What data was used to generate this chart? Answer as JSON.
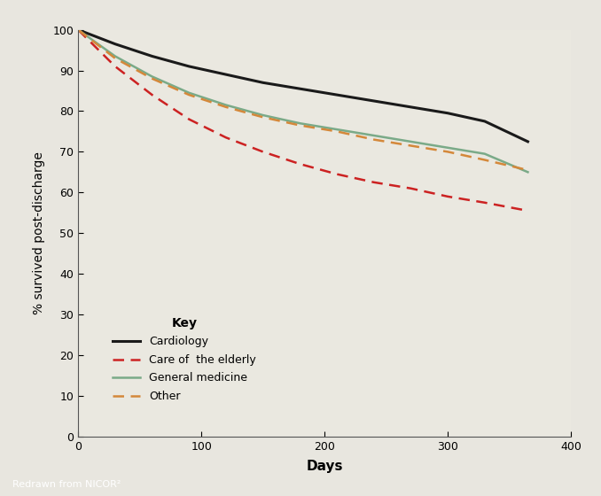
{
  "background_color": "#e8e6df",
  "plot_bg_color": "#eae8e0",
  "footer_bg_color": "#999990",
  "footer_text": "Redrawn from NICOR²",
  "ylabel": "% survived post-discharge",
  "xlabel": "Days",
  "xlim": [
    0,
    400
  ],
  "ylim": [
    0,
    100
  ],
  "xticks": [
    0,
    100,
    200,
    300,
    400
  ],
  "yticks": [
    0,
    10,
    20,
    30,
    40,
    50,
    60,
    70,
    80,
    90,
    100
  ],
  "legend_title": "Key",
  "series": [
    {
      "label": "Cardiology",
      "color": "#1a1a1a",
      "linestyle": "solid",
      "linewidth": 2.2,
      "x": [
        0,
        30,
        60,
        90,
        120,
        150,
        180,
        210,
        240,
        270,
        300,
        330,
        365
      ],
      "y": [
        100,
        96.5,
        93.5,
        91.0,
        89.0,
        87.0,
        85.5,
        84.0,
        82.5,
        81.0,
        79.5,
        77.5,
        72.5
      ]
    },
    {
      "label": "Care of  the elderly",
      "color": "#cc2222",
      "linestyle": "dashed",
      "linewidth": 1.8,
      "x": [
        0,
        30,
        60,
        90,
        120,
        150,
        180,
        210,
        240,
        270,
        300,
        330,
        365
      ],
      "y": [
        100,
        91.0,
        84.0,
        78.0,
        73.5,
        70.0,
        67.0,
        64.5,
        62.5,
        61.0,
        59.0,
        57.5,
        55.5
      ]
    },
    {
      "label": "General medicine",
      "color": "#7aaa88",
      "linestyle": "solid",
      "linewidth": 1.8,
      "x": [
        0,
        30,
        60,
        90,
        120,
        150,
        180,
        210,
        240,
        270,
        300,
        330,
        365
      ],
      "y": [
        100,
        93.5,
        88.5,
        84.5,
        81.5,
        79.0,
        77.0,
        75.5,
        74.0,
        72.5,
        71.0,
        69.5,
        65.0
      ]
    },
    {
      "label": "Other",
      "color": "#d4883a",
      "linestyle": "dashed",
      "linewidth": 1.8,
      "x": [
        0,
        30,
        60,
        90,
        120,
        150,
        180,
        210,
        240,
        270,
        300,
        330,
        365
      ],
      "y": [
        100,
        93.0,
        88.0,
        84.0,
        81.0,
        78.5,
        76.5,
        75.0,
        73.0,
        71.5,
        70.0,
        68.0,
        65.5
      ]
    }
  ]
}
